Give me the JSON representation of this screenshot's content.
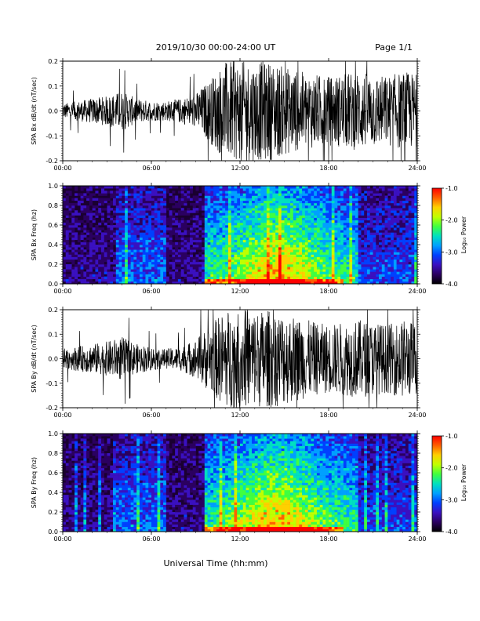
{
  "header": {
    "title": "2019/10/30  00:00-24:00 UT",
    "page": "Page 1/1"
  },
  "xlabel": "Universal Time (hh:mm)",
  "chart_data": [
    {
      "type": "line",
      "ylabel": "SPA Bx dB/dt (nT/sec)",
      "x_ticks": [
        "00:00",
        "06:00",
        "12:00",
        "18:00",
        "24:00"
      ],
      "xlim_hours": [
        0,
        24
      ],
      "y_ticks": [
        "-0.2",
        "-0.1",
        "0.0",
        "0.1",
        "0.2"
      ],
      "ylim": [
        -0.2,
        0.2
      ],
      "series_color": "#000000",
      "envelope": {
        "hours": [
          0,
          1,
          2,
          3,
          4,
          5,
          6,
          7,
          8,
          9,
          10,
          11,
          12,
          13,
          14,
          15,
          16,
          17,
          18,
          19,
          20,
          21,
          22,
          23,
          24
        ],
        "amplitude": [
          0.03,
          0.04,
          0.05,
          0.06,
          0.08,
          0.05,
          0.04,
          0.04,
          0.05,
          0.07,
          0.13,
          0.2,
          0.2,
          0.2,
          0.2,
          0.18,
          0.16,
          0.15,
          0.14,
          0.15,
          0.16,
          0.15,
          0.14,
          0.16,
          0.15
        ]
      }
    },
    {
      "type": "heatmap",
      "ylabel": "SPA Bx Freq (hz)",
      "x_ticks": [
        "00:00",
        "06:00",
        "12:00",
        "18:00",
        "24:00"
      ],
      "xlim_hours": [
        0,
        24
      ],
      "y_ticks": [
        "0.0",
        "0.2",
        "0.4",
        "0.6",
        "0.8",
        "1.0"
      ],
      "ylim": [
        0,
        1.0
      ],
      "colorbar": {
        "label": "Log₁₀ Power",
        "ticks": [
          "-1.0",
          "-2.0",
          "-3.0",
          "-4.0"
        ],
        "range": [
          -4.0,
          -1.0
        ],
        "colors": [
          "#000000",
          "#2b0060",
          "#3a10c0",
          "#0040ff",
          "#00a0ff",
          "#00e0c0",
          "#40ff40",
          "#c0ff00",
          "#ffd000",
          "#ff6000",
          "#ff0000"
        ]
      },
      "hotspot": {
        "time_hours": 15,
        "freq_hz": 0.25,
        "log_power": -1.5
      }
    },
    {
      "type": "line",
      "ylabel": "SPA By dB/dt (nT/sec)",
      "x_ticks": [
        "00:00",
        "06:00",
        "12:00",
        "18:00",
        "24:00"
      ],
      "xlim_hours": [
        0,
        24
      ],
      "y_ticks": [
        "-0.2",
        "-0.1",
        "0.0",
        "0.1",
        "0.2"
      ],
      "ylim": [
        -0.2,
        0.2
      ],
      "series_color": "#000000",
      "envelope": {
        "hours": [
          0,
          1,
          2,
          3,
          4,
          5,
          6,
          7,
          8,
          9,
          10,
          11,
          12,
          13,
          14,
          15,
          16,
          17,
          18,
          19,
          20,
          21,
          22,
          23,
          24
        ],
        "amplitude": [
          0.04,
          0.05,
          0.06,
          0.07,
          0.09,
          0.06,
          0.05,
          0.04,
          0.05,
          0.08,
          0.14,
          0.2,
          0.2,
          0.2,
          0.2,
          0.19,
          0.17,
          0.15,
          0.14,
          0.15,
          0.16,
          0.15,
          0.14,
          0.16,
          0.15
        ]
      }
    },
    {
      "type": "heatmap",
      "ylabel": "SPA By Freq (hz)",
      "x_ticks": [
        "00:00",
        "06:00",
        "12:00",
        "18:00",
        "24:00"
      ],
      "xlim_hours": [
        0,
        24
      ],
      "y_ticks": [
        "0.0",
        "0.2",
        "0.4",
        "0.6",
        "0.8",
        "1.0"
      ],
      "ylim": [
        0,
        1.0
      ],
      "colorbar": {
        "label": "Log₁₀ Power",
        "ticks": [
          "-1.0",
          "-2.0",
          "-3.0",
          "-4.0"
        ],
        "range": [
          -4.0,
          -1.0
        ],
        "colors": [
          "#000000",
          "#2b0060",
          "#3a10c0",
          "#0040ff",
          "#00a0ff",
          "#00e0c0",
          "#40ff40",
          "#c0ff00",
          "#ffd000",
          "#ff6000",
          "#ff0000"
        ]
      },
      "hotspot": {
        "time_hours": 15,
        "freq_hz": 0.25,
        "log_power": -1.5
      }
    }
  ]
}
